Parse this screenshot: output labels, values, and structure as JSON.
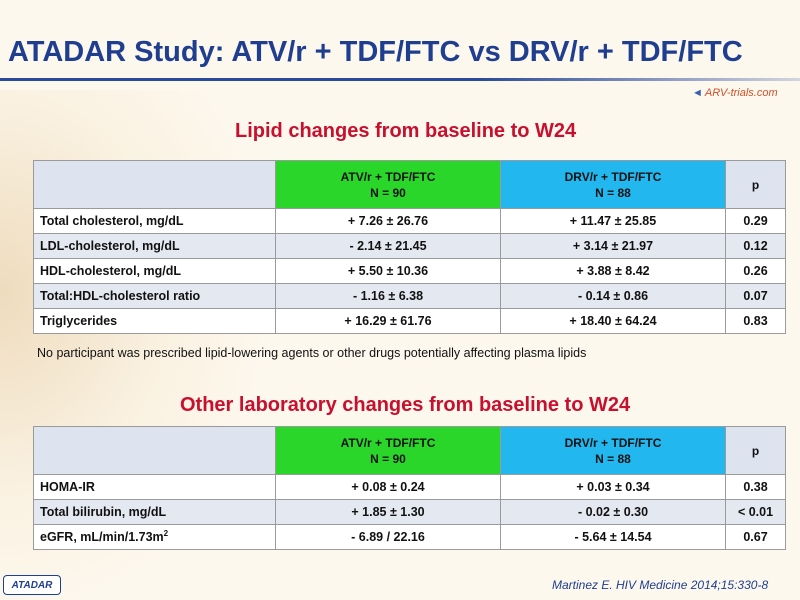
{
  "slide": {
    "title": "ATADAR Study: ATV/r + TDF/FTC vs DRV/r + TDF/FTC",
    "logo_text": "ARV-trials.com",
    "badge": "ATADAR",
    "citation": "Martinez E. HIV Medicine 2014;15:330-8"
  },
  "lipid": {
    "section_title": "Lipid changes from baseline to W24",
    "header": {
      "atv_line1": "ATV/r + TDF/FTC",
      "atv_line2": "N = 90",
      "drv_line1": "DRV/r + TDF/FTC",
      "drv_line2": "N = 88",
      "p": "p"
    },
    "rows": [
      {
        "label": "Total cholesterol, mg/dL",
        "atv": "+ 7.26 ± 26.76",
        "drv": "+ 11.47 ± 25.85",
        "p": "0.29"
      },
      {
        "label": "LDL-cholesterol, mg/dL",
        "atv": "- 2.14 ± 21.45",
        "drv": "+ 3.14 ± 21.97",
        "p": "0.12"
      },
      {
        "label": "HDL-cholesterol, mg/dL",
        "atv": "+ 5.50 ± 10.36",
        "drv": "+ 3.88 ± 8.42",
        "p": "0.26"
      },
      {
        "label": "Total:HDL-cholesterol ratio",
        "atv": "- 1.16 ± 6.38",
        "drv": "- 0.14 ± 0.86",
        "p": "0.07"
      },
      {
        "label": "Triglycerides",
        "atv": "+ 16.29 ± 61.76",
        "drv": "+ 18.40 ± 64.24",
        "p": "0.83"
      }
    ],
    "footnote": "No participant was prescribed lipid-lowering agents or other drugs potentially affecting plasma lipids"
  },
  "other": {
    "section_title": "Other laboratory changes from baseline to W24",
    "header": {
      "atv_line1": "ATV/r + TDF/FTC",
      "atv_line2": "N = 90",
      "drv_line1": "DRV/r + TDF/FTC",
      "drv_line2": "N = 88",
      "p": "p"
    },
    "rows": [
      {
        "label": "HOMA-IR",
        "atv": "+ 0.08 ± 0.24",
        "drv": "+ 0.03 ± 0.34",
        "p": "0.38"
      },
      {
        "label": "Total bilirubin, mg/dL",
        "atv": "+ 1.85 ± 1.30",
        "drv": "- 0.02 ± 0.30",
        "p": "< 0.01"
      },
      {
        "label_main": "eGFR, mL/min/1.73m",
        "label_sup": "2",
        "atv": "- 6.89 / 22.16",
        "drv": "- 5.64 ± 14.54",
        "p": "0.67"
      }
    ]
  }
}
